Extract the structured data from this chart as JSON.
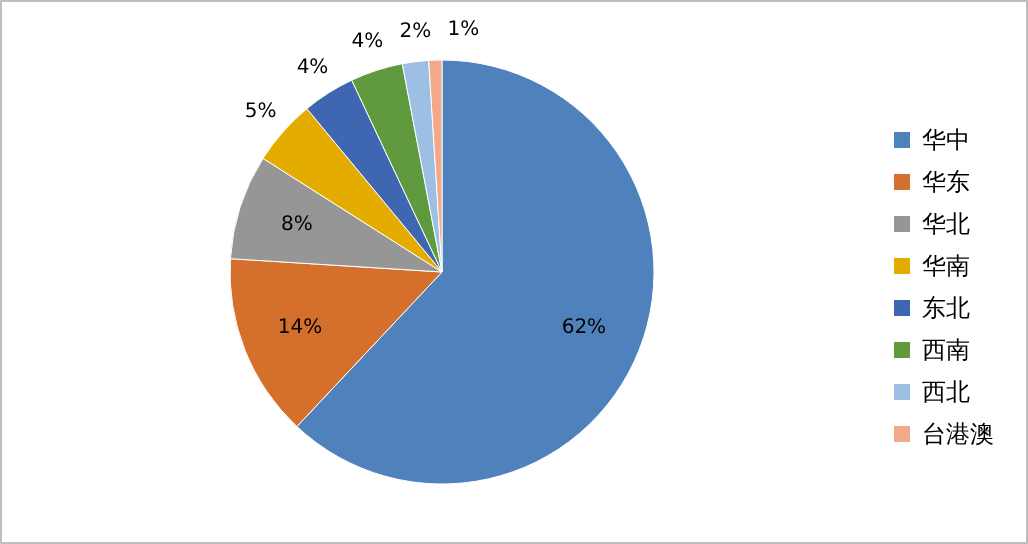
{
  "chart_data": {
    "type": "pie",
    "categories": [
      "华中",
      "华东",
      "华北",
      "华南",
      "东北",
      "西南",
      "西北",
      "台港澳"
    ],
    "values": [
      62,
      14,
      8,
      5,
      4,
      4,
      2,
      1
    ],
    "colors": [
      "#4f81bd",
      "#d4702c",
      "#969696",
      "#e5ac00",
      "#3f66b0",
      "#5f9a3f",
      "#9dbfe4",
      "#f2a98a"
    ],
    "value_labels": [
      "62%",
      "14%",
      "8%",
      "5%",
      "4%",
      "4%",
      "2%",
      "1%"
    ],
    "legend": "right"
  }
}
